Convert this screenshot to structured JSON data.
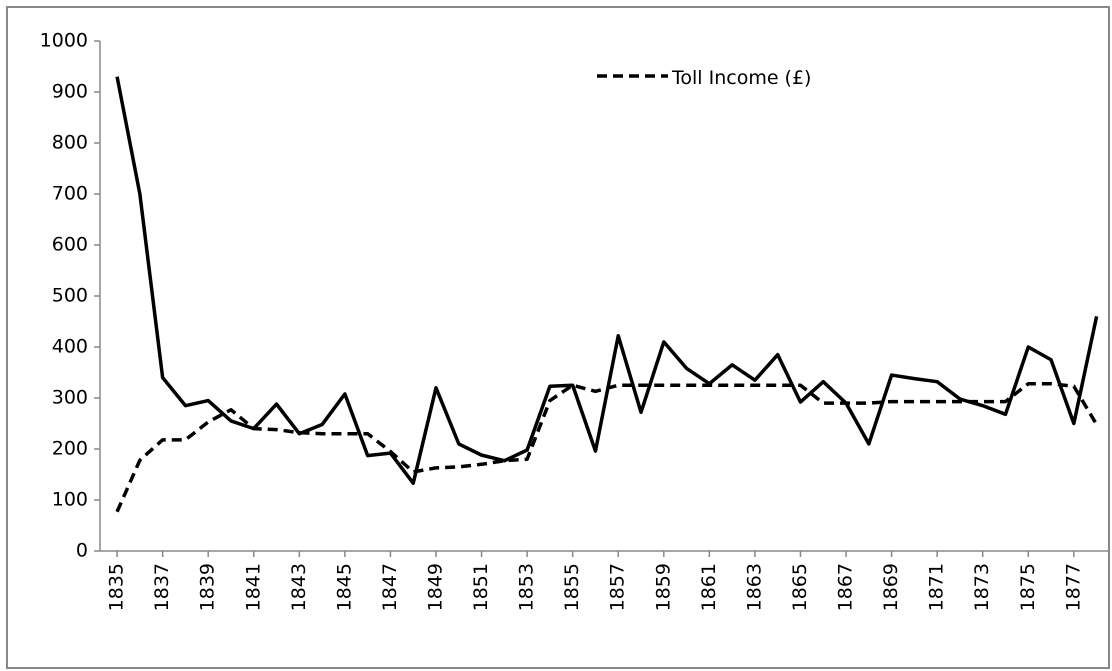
{
  "chart_data": {
    "type": "line",
    "x": [
      1835,
      1836,
      1837,
      1838,
      1839,
      1840,
      1841,
      1842,
      1843,
      1844,
      1845,
      1846,
      1847,
      1848,
      1849,
      1850,
      1851,
      1852,
      1853,
      1854,
      1855,
      1856,
      1857,
      1858,
      1859,
      1860,
      1861,
      1862,
      1863,
      1864,
      1865,
      1866,
      1867,
      1868,
      1869,
      1870,
      1871,
      1872,
      1873,
      1874,
      1875,
      1876,
      1877,
      1878
    ],
    "series": [
      {
        "color": "#000000",
        "dash": "solid",
        "values": [
          930,
          700,
          340,
          285,
          295,
          255,
          240,
          288,
          230,
          248,
          308,
          187,
          192,
          133,
          320,
          210,
          188,
          177,
          198,
          323,
          325,
          196,
          422,
          272,
          410,
          358,
          328,
          365,
          335,
          385,
          292,
          332,
          290,
          210,
          345,
          338,
          332,
          298,
          285,
          268,
          400,
          375,
          250,
          460
        ]
      },
      {
        "name": "Toll Income (£)",
        "color": "#000000",
        "dash": "dashed",
        "values": [
          77,
          178,
          218,
          218,
          253,
          277,
          240,
          238,
          232,
          230,
          230,
          230,
          195,
          155,
          163,
          165,
          170,
          177,
          180,
          295,
          325,
          313,
          325,
          325,
          325,
          325,
          325,
          325,
          325,
          325,
          325,
          290,
          290,
          290,
          293,
          293,
          293,
          293,
          293,
          293,
          328,
          328,
          323,
          248
        ]
      }
    ],
    "xlim": [
      1834.25,
      1878.5
    ],
    "xticks": [
      1835,
      1837,
      1839,
      1841,
      1843,
      1845,
      1847,
      1849,
      1851,
      1853,
      1855,
      1857,
      1859,
      1861,
      1863,
      1865,
      1867,
      1869,
      1871,
      1873,
      1875,
      1877
    ],
    "ylim": [
      0,
      1000
    ],
    "yticks": [
      0,
      100,
      200,
      300,
      400,
      500,
      600,
      700,
      800,
      900,
      1000
    ],
    "grid": false
  }
}
